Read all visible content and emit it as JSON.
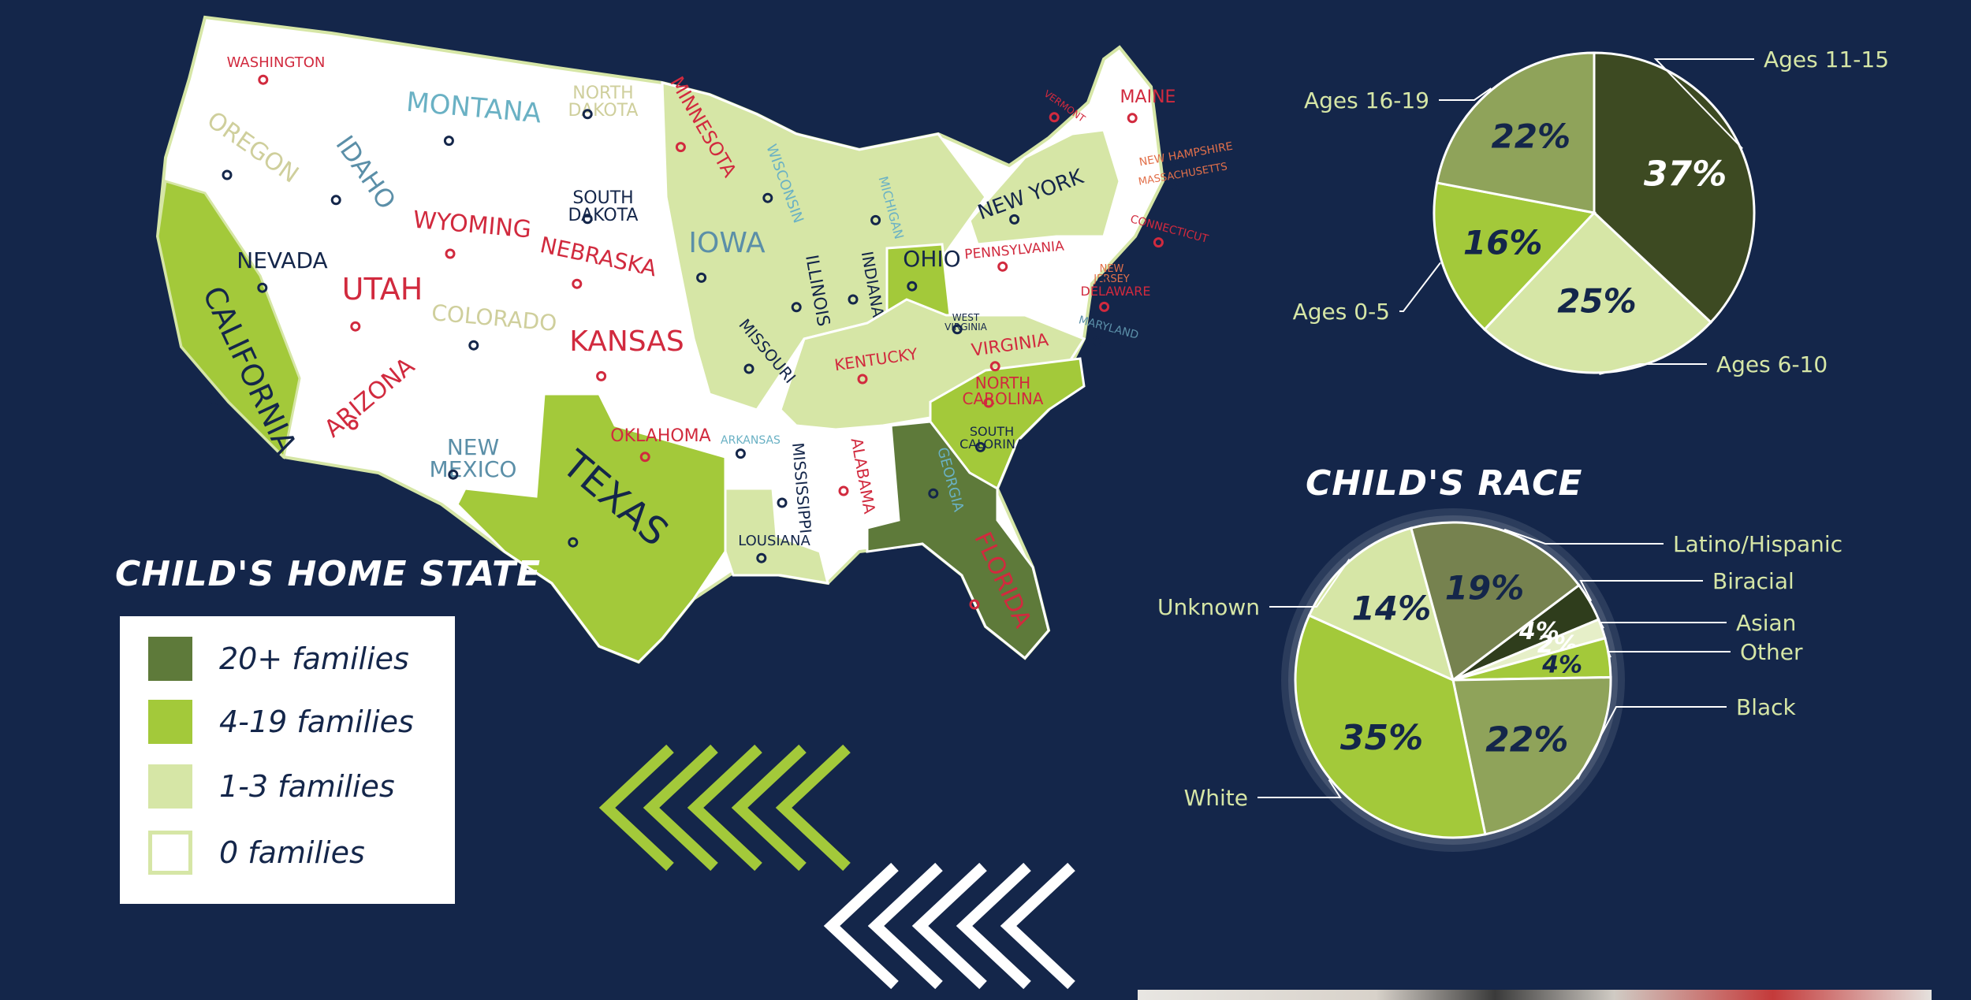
{
  "headings": {
    "home_state": "CHILD'S HOME STATE",
    "race": "CHILD'S RACE"
  },
  "legend": [
    {
      "label": "20+ families",
      "color": "#5e7a3a"
    },
    {
      "label": "4-19 families",
      "color": "#a3c93a"
    },
    {
      "label": "1-3 families",
      "color": "#d6e6a6"
    },
    {
      "label": "0 families",
      "color": "#ffffff"
    }
  ],
  "states": [
    {
      "name": "WASHINGTON",
      "color": "#d12a3e",
      "fill": "white"
    },
    {
      "name": "OREGON",
      "color": "#cfcf9c",
      "fill": "white"
    },
    {
      "name": "IDAHO",
      "color": "#5b8fa8",
      "fill": "white"
    },
    {
      "name": "MONTANA",
      "color": "#6ab1c4",
      "fill": "white"
    },
    {
      "name": "NORTH DAKOTA",
      "color": "#cfcf9c",
      "fill": "white"
    },
    {
      "name": "MINNESOTA",
      "color": "#d12a3e",
      "fill": "light"
    },
    {
      "name": "WISCONSIN",
      "color": "#6ab1c4",
      "fill": "white"
    },
    {
      "name": "MICHIGAN",
      "color": "#6ab1c4",
      "fill": "light"
    },
    {
      "name": "SOUTH DAKOTA",
      "color": "#14264a",
      "fill": "white"
    },
    {
      "name": "WYOMING",
      "color": "#d12a3e",
      "fill": "white"
    },
    {
      "name": "NEBRASKA",
      "color": "#d12a3e",
      "fill": "white"
    },
    {
      "name": "IOWA",
      "color": "#5b8fa8",
      "fill": "light"
    },
    {
      "name": "ILLINOIS",
      "color": "#14264a",
      "fill": "light"
    },
    {
      "name": "INDIANA",
      "color": "#14264a",
      "fill": "light"
    },
    {
      "name": "OHIO",
      "color": "#14264a",
      "fill": "medium"
    },
    {
      "name": "NEW YORK",
      "color": "#14264a",
      "fill": "light"
    },
    {
      "name": "PENNSYLVANIA",
      "color": "#d12a3e",
      "fill": "white"
    },
    {
      "name": "MAINE",
      "color": "#d12a3e",
      "fill": "white"
    },
    {
      "name": "VERMONT",
      "color": "#d12a3e",
      "fill": "white"
    },
    {
      "name": "NEW HAMPSHIRE",
      "color": "#e2704a",
      "fill": "white"
    },
    {
      "name": "MASSACHUSETTS",
      "color": "#e2704a",
      "fill": "white"
    },
    {
      "name": "CONNECTICUT",
      "color": "#d12a3e",
      "fill": "white"
    },
    {
      "name": "NEW JERSEY",
      "color": "#e2704a",
      "fill": "white"
    },
    {
      "name": "DELAWARE",
      "color": "#d12a3e",
      "fill": "white"
    },
    {
      "name": "MARYLAND",
      "color": "#5b8fa8",
      "fill": "white"
    },
    {
      "name": "NEVADA",
      "color": "#14264a",
      "fill": "white"
    },
    {
      "name": "CALIFORNIA",
      "color": "#14264a",
      "fill": "medium"
    },
    {
      "name": "UTAH",
      "color": "#d12a3e",
      "fill": "white"
    },
    {
      "name": "COLORADO",
      "color": "#cfcf9c",
      "fill": "white"
    },
    {
      "name": "KANSAS",
      "color": "#d12a3e",
      "fill": "white"
    },
    {
      "name": "MISSOURI",
      "color": "#14264a",
      "fill": "light"
    },
    {
      "name": "KENTUCKY",
      "color": "#d12a3e",
      "fill": "light"
    },
    {
      "name": "WEST VIRGINIA",
      "color": "#14264a",
      "fill": "white"
    },
    {
      "name": "VIRGINIA",
      "color": "#d12a3e",
      "fill": "light"
    },
    {
      "name": "NORTH CAROLINA",
      "color": "#d12a3e",
      "fill": "medium"
    },
    {
      "name": "SOUTH CALORINA",
      "color": "#14264a",
      "fill": "medium"
    },
    {
      "name": "ARIZONA",
      "color": "#d12a3e",
      "fill": "white"
    },
    {
      "name": "NEW MEXICO",
      "color": "#5b8fa8",
      "fill": "white"
    },
    {
      "name": "OKLAHOMA",
      "color": "#d12a3e",
      "fill": "white"
    },
    {
      "name": "TEXAS",
      "color": "#14264a",
      "fill": "medium"
    },
    {
      "name": "ARKANSAS",
      "color": "#6ab1c4",
      "fill": "white"
    },
    {
      "name": "MISSISSIPPI",
      "color": "#14264a",
      "fill": "white"
    },
    {
      "name": "ALABAMA",
      "color": "#d12a3e",
      "fill": "white"
    },
    {
      "name": "GEORGIA",
      "color": "#6ab1c4",
      "fill": "dark"
    },
    {
      "name": "FLORIDA",
      "color": "#d12a3e",
      "fill": "dark"
    },
    {
      "name": "LOUSIANA",
      "color": "#14264a",
      "fill": "light"
    }
  ],
  "chart_data": [
    {
      "type": "pie",
      "title": "",
      "slices": [
        {
          "label": "Ages 11-15",
          "value": 37,
          "display": "37%",
          "color": "#3d4a22"
        },
        {
          "label": "Ages 6-10",
          "value": 25,
          "display": "25%",
          "color": "#d6e6a6"
        },
        {
          "label": "Ages 0-5",
          "value": 16,
          "display": "16%",
          "color": "#a3c93a"
        },
        {
          "label": "Ages 16-19",
          "value": 22,
          "display": "22%",
          "color": "#8fa35a"
        }
      ]
    },
    {
      "type": "pie",
      "title": "CHILD'S RACE",
      "slices": [
        {
          "label": "Biracial",
          "value": 4,
          "display": "4%",
          "color": "#2f3d1c"
        },
        {
          "label": "Asian",
          "value": 2,
          "display": "2%",
          "color": "#e6efc8"
        },
        {
          "label": "Other",
          "value": 4,
          "display": "4%",
          "color": "#a3c93a"
        },
        {
          "label": "Black",
          "value": 22,
          "display": "22%",
          "color": "#8fa35a"
        },
        {
          "label": "White",
          "value": 35,
          "display": "35%",
          "color": "#a3c93a"
        },
        {
          "label": "Unknown",
          "value": 14,
          "display": "14%",
          "color": "#d6e6a6"
        },
        {
          "label": "Latino/Hispanic",
          "value": 19,
          "display": "19%",
          "color": "#76824f"
        }
      ]
    }
  ]
}
